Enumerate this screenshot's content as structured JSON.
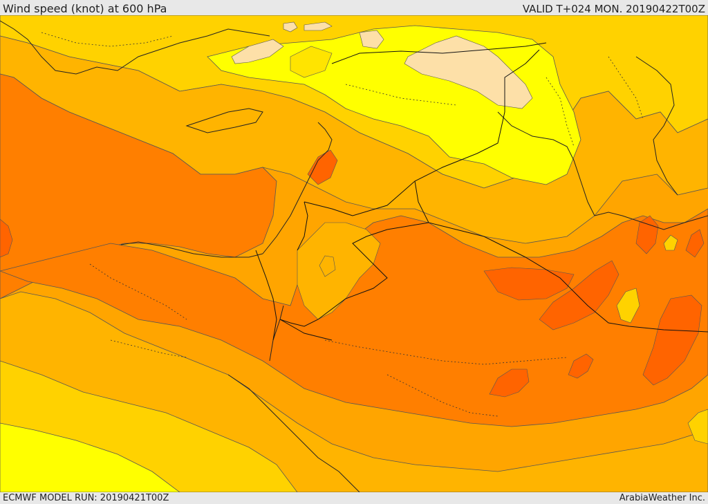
{
  "header": {
    "title": "Wind speed (knot) at 600 hPa",
    "valid": "VALID T+024 MON. 20190422T00Z"
  },
  "footer": {
    "model_run": "ECMWF MODEL RUN: 20190421T00Z",
    "credit": "ArabiaWeather Inc."
  },
  "map": {
    "field": "wind speed at 600 hPa",
    "palette": {
      "very_light": "#fde0a8",
      "yellow": "#ffff00",
      "light_gold": "#ffe400",
      "gold": "#ffd200",
      "amber": "#ffb400",
      "orange": "#ff9b00",
      "dark_orange": "#ff7f00",
      "red_orange": "#ff6400",
      "coastline": "#222222",
      "border": "#111111",
      "contour": "#555555"
    }
  }
}
